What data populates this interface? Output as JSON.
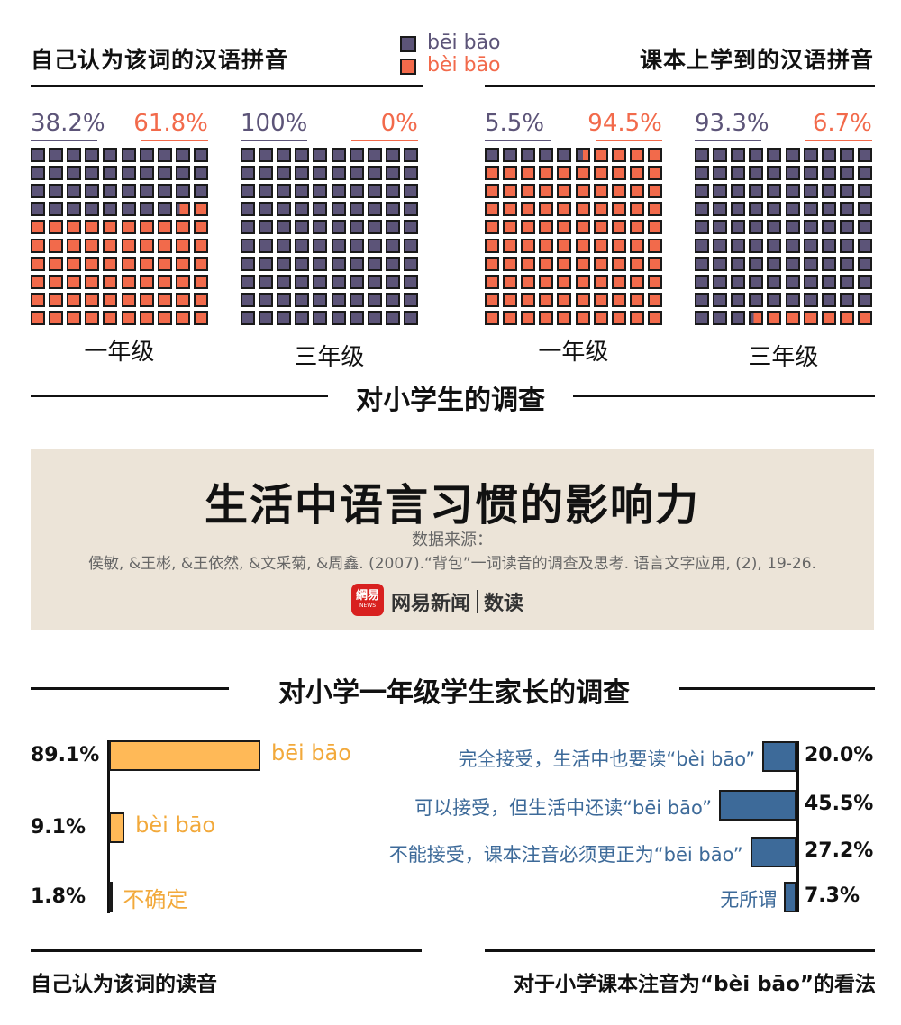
{
  "colors": {
    "purple": "#5c5478",
    "orange": "#f26a4b",
    "gold": "#ffb957",
    "blue": "#3d6a99",
    "banner": "#ece4d8"
  },
  "header": {
    "left_title": "自己认为该词的汉语拼音",
    "right_title": "课本上学到的汉语拼音",
    "legend": [
      {
        "label": "bēi bāo",
        "color": "#5c5478"
      },
      {
        "label": "bèi bāo",
        "color": "#f26a4b"
      }
    ]
  },
  "section1_title": "对小学生的调查",
  "banner": {
    "title": "生活中语言习惯的影响力",
    "source_label": "数据来源：",
    "citation": "侯敏, &王彬, &王依然, &文采菊, &周鑫. (2007).“背包”一词读音的调查及思考. 语言文字应用, (2), 19-26.",
    "brand_logo_text": "網易",
    "brand_sub": "NEWS",
    "brand_name": "网易新闻",
    "brand_section": "数读"
  },
  "section2_title": "对小学一年级学生家长的调查",
  "chart_data": [
    {
      "type": "waffle",
      "group": "自己认为该词的汉语拼音",
      "category": "一年级",
      "series": [
        {
          "name": "bēi bāo",
          "value": 38.2,
          "label": "38.2%"
        },
        {
          "name": "bèi bāo",
          "value": 61.8,
          "label": "61.8%"
        }
      ]
    },
    {
      "type": "waffle",
      "group": "自己认为该词的汉语拼音",
      "category": "三年级",
      "series": [
        {
          "name": "bēi bāo",
          "value": 100,
          "label": "100%"
        },
        {
          "name": "bèi bāo",
          "value": 0,
          "label": "0%"
        }
      ]
    },
    {
      "type": "waffle",
      "group": "课本上学到的汉语拼音",
      "category": "一年级",
      "series": [
        {
          "name": "bēi bāo",
          "value": 5.5,
          "label": "5.5%"
        },
        {
          "name": "bèi bāo",
          "value": 94.5,
          "label": "94.5%"
        }
      ]
    },
    {
      "type": "waffle",
      "group": "课本上学到的汉语拼音",
      "category": "三年级",
      "series": [
        {
          "name": "bēi bāo",
          "value": 93.3,
          "label": "93.3%"
        },
        {
          "name": "bèi bāo",
          "value": 6.7,
          "label": "6.7%"
        }
      ]
    },
    {
      "type": "bar",
      "title": "自己认为该词的读音",
      "categories": [
        "bēi bāo",
        "bèi bāo",
        "不确定"
      ],
      "values": [
        89.1,
        9.1,
        1.8
      ],
      "labels": [
        "89.1%",
        "9.1%",
        "1.8%"
      ]
    },
    {
      "type": "bar",
      "title": "对于小学课本注音为“bèi bāo”的看法",
      "categories": [
        "完全接受，生活中也要读“bèi bāo”",
        "可以接受，但生活中还读“bēi bāo”",
        "不能接受，课本注音必须更正为“bēi bāo”",
        "无所谓"
      ],
      "values": [
        20.0,
        45.5,
        27.2,
        7.3
      ],
      "labels": [
        "20.0%",
        "45.5%",
        "27.2%",
        "7.3%"
      ]
    }
  ]
}
